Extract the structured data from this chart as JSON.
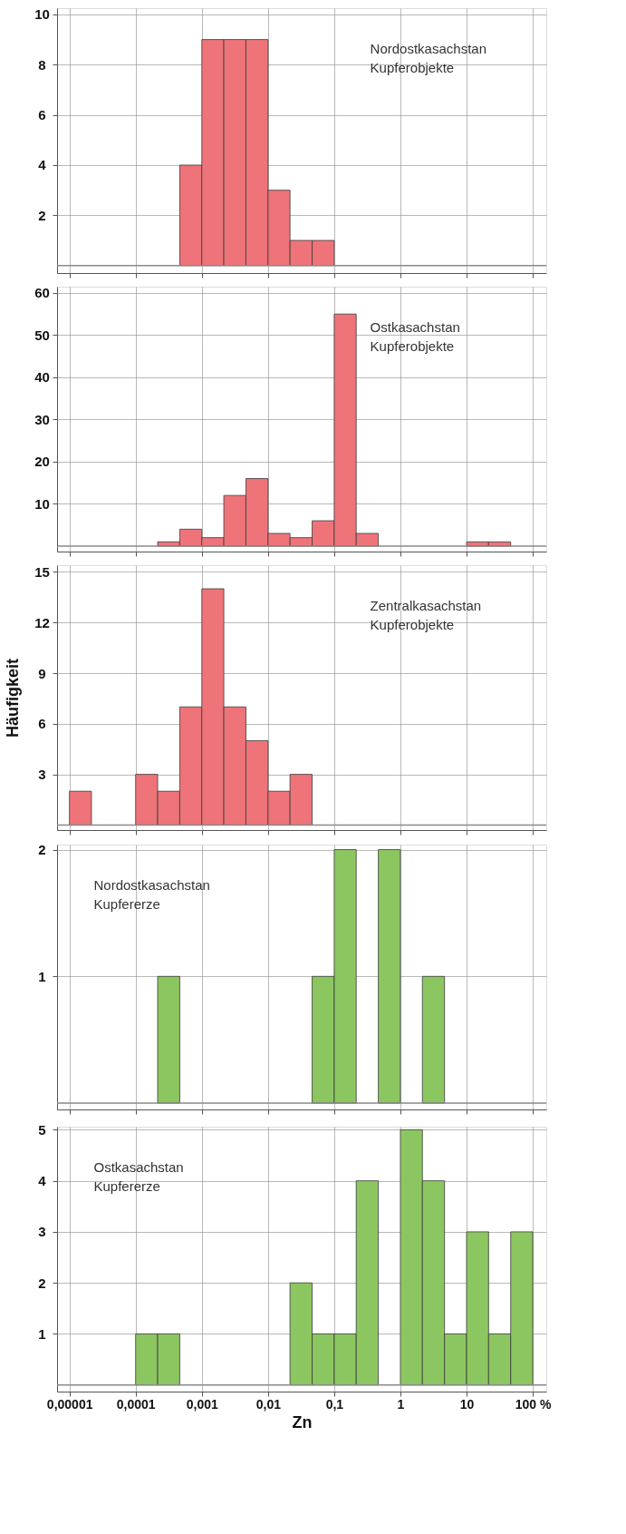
{
  "chart_data": [
    {
      "type": "histogram",
      "bins": [
        1e-05,
        2.15e-05,
        4.64e-05,
        0.0001,
        0.000215,
        0.000464,
        0.001,
        0.00215,
        0.00464,
        0.01,
        0.0215,
        0.0464,
        0.1,
        0.215,
        0.464,
        1,
        2.15,
        4.64,
        10,
        21.5,
        46.4,
        100
      ],
      "values": [
        0,
        0,
        0,
        0,
        0,
        4,
        9,
        9,
        9,
        3,
        1,
        1,
        0,
        0,
        0,
        0,
        0,
        0,
        0,
        0,
        0
      ],
      "color": "#ee7479",
      "xlim": [
        6.5e-06,
        160
      ],
      "xticks": [
        {
          "value": 1e-05,
          "label": null
        },
        {
          "value": 0.0001,
          "label": null
        },
        {
          "value": 0.001,
          "label": null
        },
        {
          "value": 0.01,
          "label": null
        },
        {
          "value": 0.1,
          "label": null
        },
        {
          "value": 1,
          "label": null
        },
        {
          "value": 10,
          "label": null
        },
        {
          "value": 100,
          "label": null
        }
      ],
      "ylim": [
        -0.3,
        10.25
      ],
      "yticks": [
        2,
        4,
        6,
        8,
        10
      ],
      "ref_lines": [
        {
          "axis": "y",
          "value": 0,
          "color": "#8a8a8a"
        }
      ],
      "log": "x",
      "grid": true,
      "tick_labels": "y",
      "annotations": [
        "Nordostkasachstan\nKupferobjekte"
      ]
    },
    {
      "type": "histogram",
      "bins": [
        1e-05,
        2.15e-05,
        4.64e-05,
        0.0001,
        0.000215,
        0.000464,
        0.001,
        0.00215,
        0.00464,
        0.01,
        0.0215,
        0.0464,
        0.1,
        0.215,
        0.464,
        1,
        2.15,
        4.64,
        10,
        21.5,
        46.4,
        100
      ],
      "values": [
        0,
        0,
        0,
        0,
        1,
        4,
        2,
        12,
        16,
        3,
        2,
        6,
        55,
        3,
        0,
        0,
        0,
        0,
        1,
        1,
        0
      ],
      "color": "#ee7479",
      "xlim": [
        6.5e-06,
        160
      ],
      "xticks": [
        {
          "value": 1e-05,
          "label": null
        },
        {
          "value": 0.0001,
          "label": null
        },
        {
          "value": 0.001,
          "label": null
        },
        {
          "value": 0.01,
          "label": null
        },
        {
          "value": 0.1,
          "label": null
        },
        {
          "value": 1,
          "label": null
        },
        {
          "value": 10,
          "label": null
        },
        {
          "value": 100,
          "label": null
        }
      ],
      "ylim": [
        -1.3,
        61.5
      ],
      "yticks": [
        10,
        20,
        30,
        40,
        50,
        60
      ],
      "ref_lines": [
        {
          "axis": "y",
          "value": 0,
          "color": "#8a8a8a"
        }
      ],
      "log": "x",
      "grid": true,
      "tick_labels": "y",
      "annotations": [
        "Ostkasachstan\nKupferobjekte"
      ]
    },
    {
      "type": "histogram",
      "bins": [
        1e-05,
        2.15e-05,
        4.64e-05,
        0.0001,
        0.000215,
        0.000464,
        0.001,
        0.00215,
        0.00464,
        0.01,
        0.0215,
        0.0464,
        0.1,
        0.215,
        0.464,
        1,
        2.15,
        4.64,
        10,
        21.5,
        46.4,
        100
      ],
      "values": [
        2,
        0,
        0,
        3,
        2,
        7,
        14,
        7,
        5,
        2,
        3,
        0,
        0,
        0,
        0,
        0,
        0,
        0,
        0,
        0,
        0
      ],
      "color": "#ee7479",
      "xlim": [
        6.5e-06,
        160
      ],
      "xticks": [
        {
          "value": 1e-05,
          "label": null
        },
        {
          "value": 0.0001,
          "label": null
        },
        {
          "value": 0.001,
          "label": null
        },
        {
          "value": 0.01,
          "label": null
        },
        {
          "value": 0.1,
          "label": null
        },
        {
          "value": 1,
          "label": null
        },
        {
          "value": 10,
          "label": null
        },
        {
          "value": 100,
          "label": null
        }
      ],
      "ylim": [
        -0.3,
        15.4
      ],
      "yticks": [
        3,
        6,
        9,
        12,
        15
      ],
      "ref_lines": [
        {
          "axis": "y",
          "value": 0,
          "color": "#8a8a8a"
        }
      ],
      "log": "x",
      "grid": true,
      "tick_labels": "y",
      "ylabel": "Häufigkeit",
      "annotations": [
        "Zentralkasachstan\nKupferobjekte"
      ]
    },
    {
      "type": "histogram",
      "bins": [
        1e-05,
        2.15e-05,
        4.64e-05,
        0.0001,
        0.000215,
        0.000464,
        0.001,
        0.00215,
        0.00464,
        0.01,
        0.0215,
        0.0464,
        0.1,
        0.215,
        0.464,
        1,
        2.15,
        4.64,
        10,
        21.5,
        46.4,
        100
      ],
      "values": [
        0,
        0,
        0,
        0,
        1,
        0,
        0,
        0,
        0,
        0,
        0,
        1,
        2,
        0,
        2,
        0,
        1,
        0,
        0,
        0,
        0
      ],
      "color": "#8cc660",
      "xlim": [
        6.5e-06,
        160
      ],
      "xticks": [
        {
          "value": 1e-05,
          "label": null
        },
        {
          "value": 0.0001,
          "label": null
        },
        {
          "value": 0.001,
          "label": null
        },
        {
          "value": 0.01,
          "label": null
        },
        {
          "value": 0.1,
          "label": null
        },
        {
          "value": 1,
          "label": null
        },
        {
          "value": 10,
          "label": null
        },
        {
          "value": 100,
          "label": null
        }
      ],
      "ylim": [
        -0.05,
        2.04
      ],
      "yticks": [
        1,
        2
      ],
      "ref_lines": [
        {
          "axis": "y",
          "value": 0,
          "color": "#8a8a8a"
        }
      ],
      "log": "x",
      "grid": true,
      "tick_labels": "y",
      "annotations": [
        "Nordostkasachstan\nKupfererze"
      ]
    },
    {
      "type": "histogram",
      "bins": [
        1e-05,
        2.15e-05,
        4.64e-05,
        0.0001,
        0.000215,
        0.000464,
        0.001,
        0.00215,
        0.00464,
        0.01,
        0.0215,
        0.0464,
        0.1,
        0.215,
        0.464,
        1,
        2.15,
        4.64,
        10,
        21.5,
        46.4,
        100
      ],
      "values": [
        0,
        0,
        0,
        1,
        1,
        0,
        0,
        0,
        0,
        0,
        2,
        1,
        1,
        4,
        0,
        5,
        4,
        1,
        3,
        1,
        3
      ],
      "color": "#8cc660",
      "xlim": [
        6.5e-06,
        160
      ],
      "xticks": [
        {
          "value": 1e-05,
          "label": "0,00001"
        },
        {
          "value": 0.0001,
          "label": "0,0001"
        },
        {
          "value": 0.001,
          "label": "0,001"
        },
        {
          "value": 0.01,
          "label": "0,01"
        },
        {
          "value": 0.1,
          "label": "0,1"
        },
        {
          "value": 1,
          "label": "1"
        },
        {
          "value": 10,
          "label": "10"
        },
        {
          "value": 100,
          "label": "100 %"
        }
      ],
      "ylim": [
        -0.13,
        5.06
      ],
      "yticks": [
        1,
        2,
        3,
        4,
        5
      ],
      "ref_lines": [
        {
          "axis": "y",
          "value": 0,
          "color": "#8a8a8a"
        }
      ],
      "log": "x",
      "grid": true,
      "xlabel": "Zn",
      "annotations": [
        "Ostkasachstan\nKupfererze"
      ]
    }
  ]
}
